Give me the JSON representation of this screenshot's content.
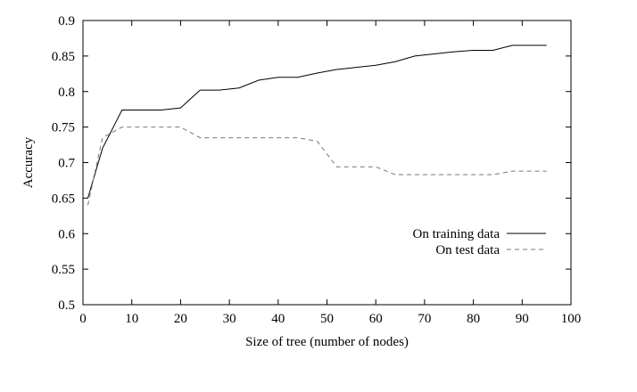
{
  "chart_data": {
    "type": "line",
    "title": "",
    "xlabel": "Size of tree (number of nodes)",
    "ylabel": "Accuracy",
    "xlim": [
      0,
      100
    ],
    "ylim": [
      0.5,
      0.9
    ],
    "xticks": [
      0,
      10,
      20,
      30,
      40,
      50,
      60,
      70,
      80,
      90,
      100
    ],
    "yticks": [
      0.5,
      0.55,
      0.6,
      0.65,
      0.7,
      0.75,
      0.8,
      0.85,
      0.9
    ],
    "grid": false,
    "legend_position": "center-right",
    "series": [
      {
        "name": "On training data",
        "style": "solid",
        "color": "#000000",
        "x": [
          1,
          4,
          8,
          12,
          16,
          20,
          24,
          28,
          32,
          36,
          40,
          44,
          48,
          52,
          56,
          60,
          64,
          68,
          72,
          76,
          80,
          84,
          88,
          92,
          95
        ],
        "y": [
          0.65,
          0.72,
          0.774,
          0.774,
          0.774,
          0.777,
          0.802,
          0.802,
          0.805,
          0.816,
          0.82,
          0.82,
          0.826,
          0.831,
          0.834,
          0.837,
          0.842,
          0.85,
          0.853,
          0.856,
          0.858,
          0.858,
          0.865,
          0.865,
          0.865
        ]
      },
      {
        "name": "On test data",
        "style": "dashed",
        "color": "#777777",
        "x": [
          1,
          4,
          8,
          12,
          16,
          20,
          24,
          28,
          32,
          36,
          40,
          44,
          48,
          52,
          56,
          60,
          64,
          68,
          72,
          76,
          80,
          84,
          88,
          92,
          95
        ],
        "y": [
          0.64,
          0.735,
          0.75,
          0.75,
          0.75,
          0.75,
          0.735,
          0.735,
          0.735,
          0.735,
          0.735,
          0.735,
          0.73,
          0.694,
          0.694,
          0.694,
          0.683,
          0.683,
          0.683,
          0.683,
          0.683,
          0.683,
          0.688,
          0.688,
          0.688
        ]
      }
    ]
  }
}
